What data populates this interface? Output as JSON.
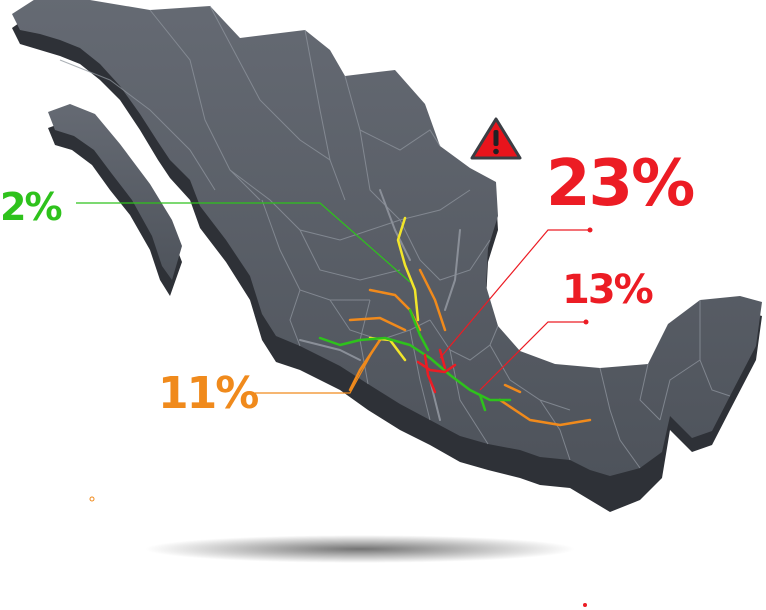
{
  "colors": {
    "land_top": "#585d66",
    "land_side": "#2e3137",
    "borders": "#8f959e",
    "green": "#2ec21c",
    "red": "#ec1c24",
    "orange": "#f08a1c",
    "yellow": "#f2e52a",
    "warning": "#e8141c"
  },
  "labels": {
    "green_pct": "2%",
    "red_big_pct": "23%",
    "red_small_pct": "13%",
    "orange_pct": "11%"
  },
  "icons": {
    "warning": "warning-triangle-icon"
  }
}
